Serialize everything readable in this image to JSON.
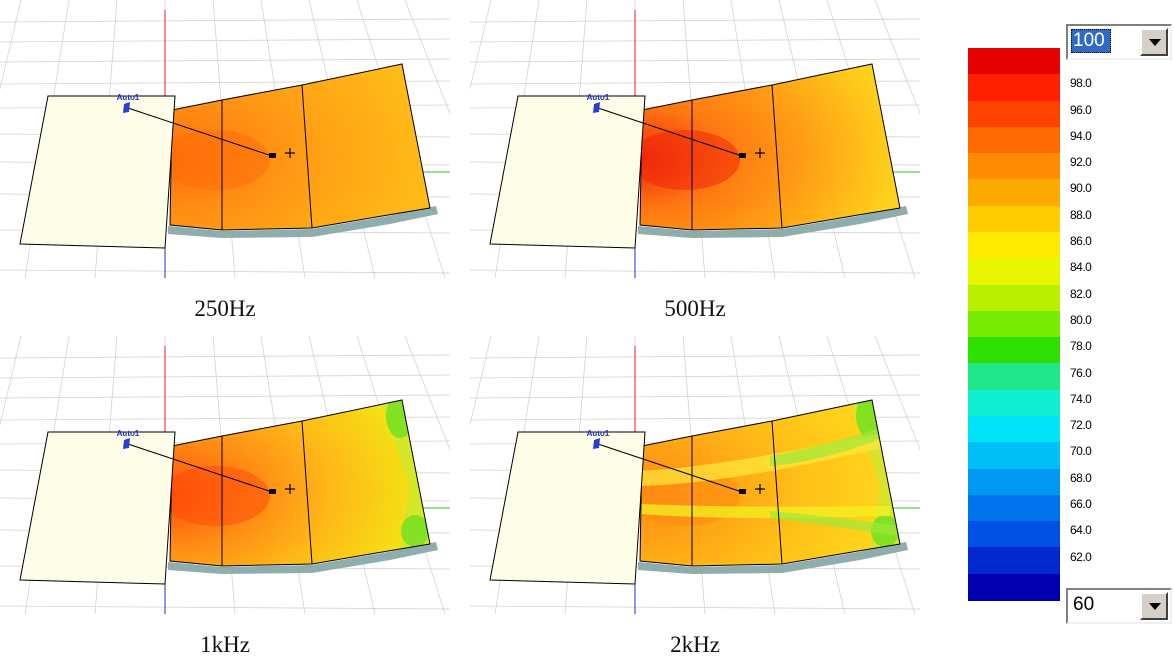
{
  "panels": [
    {
      "id": "p250",
      "label": "250Hz",
      "marker": "Auto1"
    },
    {
      "id": "p500",
      "label": "500Hz",
      "marker": "Auto1"
    },
    {
      "id": "p1k",
      "label": "1kHz",
      "marker": "Auto1"
    },
    {
      "id": "p2k",
      "label": "2kHz",
      "marker": "Auto1"
    }
  ],
  "scale": {
    "max_select": {
      "value": "100"
    },
    "min_select": {
      "value": "60"
    },
    "ticks": [
      "98.0",
      "96.0",
      "94.0",
      "92.0",
      "90.0",
      "88.0",
      "86.0",
      "84.0",
      "82.0",
      "80.0",
      "78.0",
      "76.0",
      "74.0",
      "72.0",
      "70.0",
      "68.0",
      "66.0",
      "64.0",
      "62.0"
    ],
    "colors": [
      "#e60000",
      "#ff2000",
      "#ff4200",
      "#ff6a00",
      "#ff8c00",
      "#ffaa00",
      "#ffcc00",
      "#ffea00",
      "#e8f500",
      "#b8f000",
      "#78ec00",
      "#2ee000",
      "#20e888",
      "#10f0d0",
      "#00e4f8",
      "#00c0f8",
      "#0098f0",
      "#0074ec",
      "#0050e4",
      "#0028d0",
      "#0000b0"
    ]
  }
}
